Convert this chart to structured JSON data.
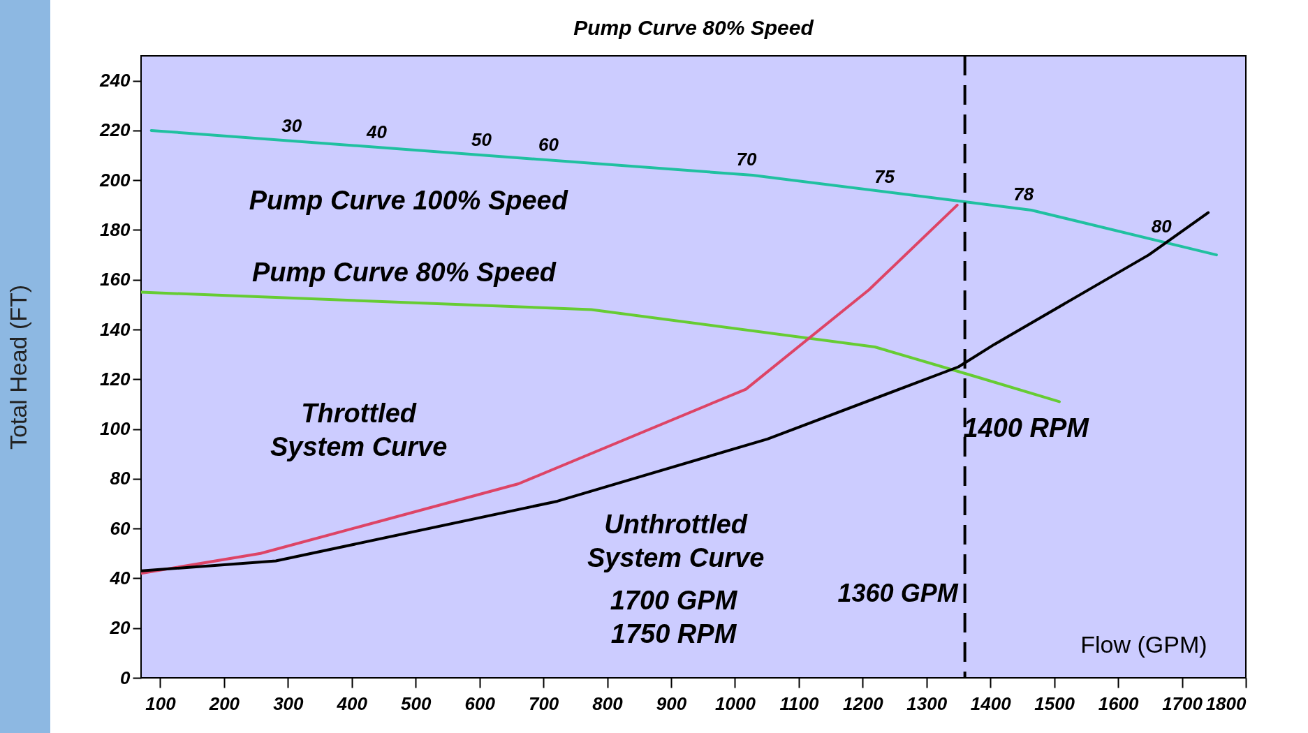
{
  "chart_data": {
    "type": "line",
    "title": "Pump Curve 80% Speed",
    "xlabel": "Flow (GPM)",
    "ylabel": "Total Head (FT)",
    "xlim": [
      70,
      1800
    ],
    "xticks": [
      100,
      200,
      300,
      400,
      500,
      600,
      700,
      800,
      900,
      1000,
      1100,
      1200,
      1300,
      1400,
      1500,
      1600,
      1700,
      1800
    ],
    "ylim": [
      0,
      250
    ],
    "yticks": [
      0,
      20,
      40,
      60,
      80,
      100,
      120,
      140,
      160,
      180,
      200,
      220,
      240
    ],
    "grid": false,
    "marker": "none",
    "line_style": "solid",
    "series": [
      {
        "name": "Pump Curve 100% Speed",
        "color": "#20c0a0",
        "x": [
          86,
          1028,
          1464,
          1754
        ],
        "values": [
          220,
          202,
          188,
          170
        ]
      },
      {
        "name": "Pump Curve 80% Speed",
        "color": "#66cc33",
        "x": [
          70,
          775,
          1219,
          1378,
          1508
        ],
        "values": [
          155,
          148,
          133,
          121,
          111
        ]
      },
      {
        "name": "Throttled System Curve",
        "color": "#dd4466",
        "x": [
          70,
          257,
          661,
          1017,
          1210,
          1348
        ],
        "values": [
          42,
          50,
          78,
          116,
          156,
          190
        ]
      },
      {
        "name": "Unthrottled System Curve",
        "color": "#000000",
        "x": [
          70,
          281,
          722,
          1051,
          1350,
          1406,
          1648,
          1741
        ],
        "values": [
          43,
          47,
          71,
          96,
          125,
          134,
          170,
          187
        ]
      }
    ],
    "ref_lines": [
      {
        "axis": "x",
        "value": 1360,
        "label": "1360 GPM",
        "color": "#000000",
        "line_style": "dashed"
      }
    ],
    "annotations": [
      {
        "text": "30",
        "x": 306,
        "y": 215.8
      },
      {
        "text": "40",
        "x": 439,
        "y": 213.3
      },
      {
        "text": "50",
        "x": 603,
        "y": 210.1
      },
      {
        "text": "60",
        "x": 708,
        "y": 208.1
      },
      {
        "text": "70",
        "x": 1018,
        "y": 202.2
      },
      {
        "text": "75",
        "x": 1234,
        "y": 195.4
      },
      {
        "text": "78",
        "x": 1452,
        "y": 188.4
      },
      {
        "text": "80",
        "x": 1668,
        "y": 175.3
      },
      "1400 RPM",
      "1700 GPM",
      "1750 RPM"
    ]
  }
}
